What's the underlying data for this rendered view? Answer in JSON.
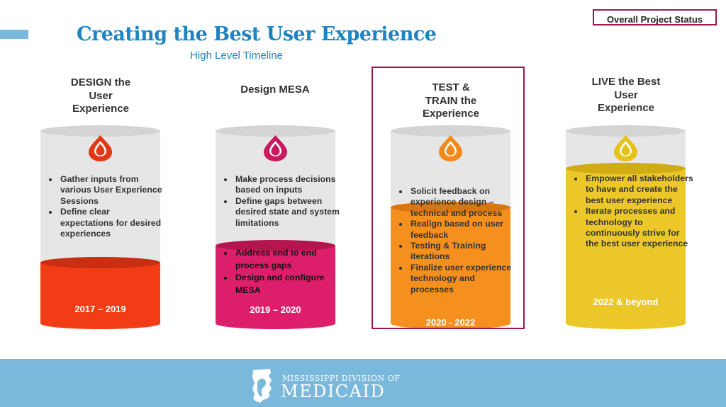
{
  "header": {
    "title": "Creating the Best User Experience",
    "subtitle": "High Level Timeline",
    "status_label": "Overall Project Status"
  },
  "phases": [
    {
      "title": "DESIGN the\nUser\nExperience",
      "bullets": [
        "Gather inputs from various User Experience Sessions",
        "Define clear expectations for desired experiences"
      ],
      "bullets_lower": [],
      "date": "2017 – 2019",
      "fill_color": "#f23c16",
      "drop_color": "#e03a14"
    },
    {
      "title": "Design MESA",
      "bullets": [
        "Make process decisions based on  inputs",
        "Define gaps between  desired state and system limitations"
      ],
      "bullets_lower": [
        "Address end to end process gaps",
        "Design and configure  MESA"
      ],
      "date": "2019 – 2020",
      "fill_color": "#dd1e6a",
      "drop_color": "#c81a5e"
    },
    {
      "title": "TEST &\nTRAIN the\nExperience",
      "bullets": [
        "Solicit feedback on experience design – technical and process",
        "Realign based on user  feedback",
        "Testing & Training iterations",
        "Finalize user experience technology and processes"
      ],
      "bullets_lower": [],
      "date": "2020 - 2022",
      "fill_color": "#f5901e",
      "drop_color": "#f08a1c"
    },
    {
      "title": "LIVE the Best\nUser\nExperience",
      "bullets": [
        "Empower all stakeholders to have and create the best user experience",
        "Iterate processes and  technology to continuously strive for the best user experience"
      ],
      "bullets_lower": [],
      "date": "2022 & beyond",
      "fill_color": "#ecc72a",
      "drop_color": "#e6c31a"
    }
  ],
  "footer": {
    "logo_top": "MISSISSIPPI DIVISION OF",
    "logo_main": "MEDICAID"
  },
  "colors": {
    "accent_blue": "#1d84c4",
    "highlight": "#a0174f",
    "footer_band": "#7ab8dc",
    "cylinder_gray": "#e6e6e6"
  }
}
